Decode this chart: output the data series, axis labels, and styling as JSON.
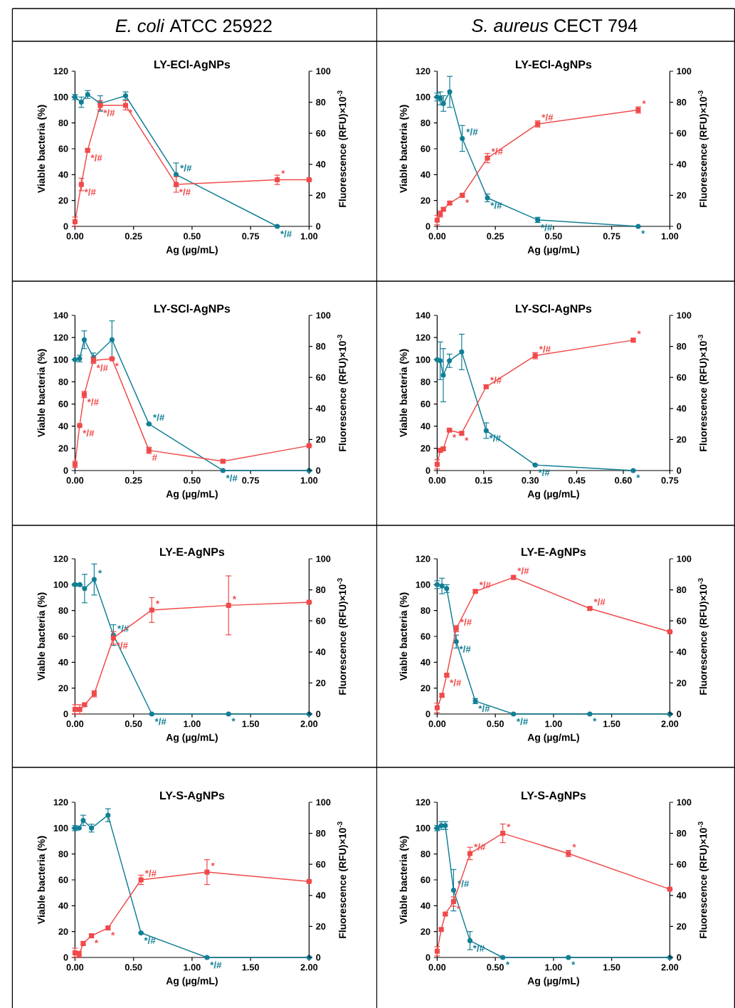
{
  "chart_data": [
    {
      "type": "other",
      "title": "*E. coli* ATCC 25922"
    },
    {
      "type": "other",
      "title": "*S. aureus* CECT 794"
    },
    {
      "type": "line",
      "title": "LY-ECl-AgNPs",
      "xlabel": "Ag (µg/mL)",
      "ylabel": "Viable bacteria (%)",
      "y2label": "Fluorescence (RFU)×10$^{-3}$",
      "xlim": [
        0,
        1
      ],
      "xticks": [
        {
          "value": 0,
          "label": "0.00"
        },
        {
          "value": 0.25,
          "label": "0.25"
        },
        {
          "value": 0.5,
          "label": "0.50"
        },
        {
          "value": 0.75,
          "label": "0.75"
        },
        {
          "value": 1,
          "label": "1.00"
        }
      ],
      "ylim": [
        0,
        120
      ],
      "yticks": [
        0,
        20,
        40,
        60,
        80,
        100,
        120
      ],
      "y2lim": [
        0,
        100
      ],
      "y2ticks": [
        0,
        20,
        40,
        60,
        80,
        100
      ],
      "series": [
        {
          "type": "line",
          "marker": "circle",
          "color": "#117f96",
          "x": [
            0,
            0.027,
            0.054,
            0.108,
            0.216,
            0.432,
            0.864
          ],
          "values": [
            100,
            96,
            102,
            95,
            101,
            40,
            0
          ],
          "errors": [
            2,
            4,
            3,
            6,
            3,
            9,
            null
          ]
        },
        {
          "type": "line",
          "marker": "square",
          "color": "#f04a4a",
          "axis": "y2",
          "x": [
            0,
            0.027,
            0.054,
            0.108,
            0.216,
            0.432,
            0.864,
            1.0
          ],
          "values": [
            3,
            27,
            49,
            78,
            78,
            27,
            30,
            30
          ],
          "errors": [
            3,
            4,
            1,
            3,
            3,
            5,
            3,
            null
          ]
        }
      ],
      "annotations": [
        {
          "text": "*/#",
          "x": 0.108,
          "y": 93.6
        },
        {
          "text": "*",
          "x": 0.216,
          "y": 93.6
        },
        {
          "text": "*/#",
          "x": 0.054,
          "y": 58.8
        },
        {
          "text": "*/#",
          "x": 0.027,
          "y": 32.4
        },
        {
          "text": "*/#",
          "x": 0.432,
          "y": 32.4
        },
        {
          "text": "*",
          "x": 0.864,
          "y": 36
        },
        {
          "text": "*/#",
          "x": 0.432,
          "y": 40
        },
        {
          "text": "*/#",
          "x": 0.864,
          "y": 0
        }
      ]
    },
    {
      "type": "line",
      "title": "LY-ECl-AgNPs",
      "xlabel": "Ag (µg/mL)",
      "ylabel": "Viable bacteria (%)",
      "y2label": "Fluorescence (RFU)×10$^{-3}$",
      "xlim": [
        0,
        1
      ],
      "xticks": [
        {
          "value": 0,
          "label": "0.00"
        },
        {
          "value": 0.25,
          "label": "0.25"
        },
        {
          "value": 0.5,
          "label": "0.50"
        },
        {
          "value": 0.75,
          "label": "0.75"
        },
        {
          "value": 1,
          "label": "1.00"
        }
      ],
      "ylim": [
        0,
        120
      ],
      "yticks": [
        0,
        20,
        40,
        60,
        80,
        100,
        120
      ],
      "y2lim": [
        0,
        100
      ],
      "y2ticks": [
        0,
        20,
        40,
        60,
        80,
        100
      ],
      "series": [
        {
          "type": "line",
          "marker": "circle",
          "color": "#117f96",
          "x": [
            0,
            0.0135,
            0.027,
            0.054,
            0.108,
            0.216,
            0.432,
            0.864
          ],
          "values": [
            100,
            99,
            95,
            104,
            68,
            22,
            5,
            0
          ],
          "errors": [
            3,
            5,
            6,
            12,
            10,
            3,
            2,
            null
          ]
        },
        {
          "type": "line",
          "marker": "square",
          "color": "#f04a4a",
          "axis": "y2",
          "x": [
            0,
            0.0135,
            0.027,
            0.054,
            0.108,
            0.216,
            0.432,
            0.864
          ],
          "values": [
            4,
            8,
            11,
            15,
            20,
            44,
            66,
            75
          ],
          "errors": [
            3,
            2,
            1,
            1,
            1,
            3,
            2,
            2
          ]
        }
      ],
      "annotations": [
        {
          "text": "*/#",
          "x": 0.108,
          "y": 68
        },
        {
          "text": "*/#",
          "x": 0.432,
          "y": 79.2
        },
        {
          "text": "*",
          "x": 0.864,
          "y": 90
        },
        {
          "text": "*/#",
          "x": 0.216,
          "y": 52.8
        },
        {
          "text": "*",
          "x": 0.108,
          "y": 24
        },
        {
          "text": "*/#",
          "x": 0.216,
          "y": 22
        },
        {
          "text": "*/#",
          "x": 0.432,
          "y": 5
        },
        {
          "text": "*",
          "x": 0.864,
          "y": 0
        }
      ]
    },
    {
      "type": "line",
      "title": "LY-SCl-AgNPs",
      "xlabel": "Ag (µg/mL)",
      "ylabel": "Viable bacteria (%)",
      "y2label": "Fluorescence (RFU)×10$^{-3}$",
      "xlim": [
        0,
        1
      ],
      "xticks": [
        {
          "value": 0,
          "label": "0.00"
        },
        {
          "value": 0.25,
          "label": "0.25"
        },
        {
          "value": 0.5,
          "label": "0.50"
        },
        {
          "value": 0.75,
          "label": "0.75"
        },
        {
          "value": 1,
          "label": "1.00"
        }
      ],
      "ylim": [
        0,
        140
      ],
      "yticks": [
        0,
        20,
        40,
        60,
        80,
        100,
        120,
        140
      ],
      "y2lim": [
        0,
        100
      ],
      "y2ticks": [
        0,
        20,
        40,
        60,
        80,
        100
      ],
      "series": [
        {
          "type": "line",
          "marker": "circle",
          "color": "#117f96",
          "x": [
            0,
            0.0198,
            0.0395,
            0.079,
            0.158,
            0.316,
            0.632,
            1.0
          ],
          "values": [
            100,
            101,
            118,
            102,
            118,
            42,
            0,
            0
          ],
          "errors": [
            null,
            3,
            8,
            4,
            17,
            null,
            null,
            null
          ]
        },
        {
          "type": "line",
          "marker": "square",
          "color": "#f04a4a",
          "axis": "y2",
          "x": [
            0,
            0.0198,
            0.0395,
            0.079,
            0.158,
            0.316,
            0.632,
            1.0
          ],
          "values": [
            4,
            29,
            49,
            71,
            72,
            13,
            6,
            16
          ],
          "errors": [
            2,
            null,
            2,
            2,
            null,
            2,
            1,
            null
          ]
        }
      ],
      "annotations": [
        {
          "text": "*",
          "x": 0.158,
          "y": 100.8
        },
        {
          "text": "*/#",
          "x": 0.079,
          "y": 99.4
        },
        {
          "text": "*/#",
          "x": 0.0395,
          "y": 68.6
        },
        {
          "text": "*/#",
          "x": 0.0198,
          "y": 40.6
        },
        {
          "text": "#",
          "x": 0.316,
          "y": 18.2
        },
        {
          "text": "*/#",
          "x": 0.316,
          "y": 42
        },
        {
          "text": "*/#",
          "x": 0.632,
          "y": 0
        }
      ]
    },
    {
      "type": "line",
      "title": "LY-SCl-AgNPs",
      "xlabel": "Ag (µg/mL)",
      "ylabel": "Viable bacteria (%)",
      "y2label": "Fluorescence (RFU)×10$^{-3}$",
      "xlim": [
        0,
        0.75
      ],
      "xticks": [
        {
          "value": 0,
          "label": "0.00"
        },
        {
          "value": 0.15,
          "label": "0.15"
        },
        {
          "value": 0.3,
          "label": "0.30"
        },
        {
          "value": 0.45,
          "label": "0.45"
        },
        {
          "value": 0.6,
          "label": "0.60"
        },
        {
          "value": 0.75,
          "label": "0.75"
        }
      ],
      "ylim": [
        0,
        140
      ],
      "yticks": [
        0,
        20,
        40,
        60,
        80,
        100,
        120,
        140
      ],
      "y2lim": [
        0,
        100
      ],
      "y2ticks": [
        0,
        20,
        40,
        60,
        80,
        100
      ],
      "series": [
        {
          "type": "line",
          "marker": "circle",
          "color": "#117f96",
          "x": [
            0,
            0.0099,
            0.0198,
            0.0395,
            0.079,
            0.158,
            0.316,
            0.632
          ],
          "values": [
            100,
            99,
            86,
            99,
            107,
            36,
            5,
            0
          ],
          "errors": [
            null,
            17,
            24,
            6,
            16,
            7,
            null,
            null
          ]
        },
        {
          "type": "line",
          "marker": "square",
          "color": "#f04a4a",
          "axis": "y2",
          "x": [
            0,
            0.0099,
            0.0198,
            0.0395,
            0.079,
            0.158,
            0.316,
            0.632
          ],
          "values": [
            4,
            13,
            14,
            26,
            24,
            54,
            74,
            84
          ],
          "errors": [
            3,
            1,
            1,
            1,
            1,
            1,
            2,
            1
          ]
        }
      ],
      "annotations": [
        {
          "text": "*/#",
          "x": 0.316,
          "y": 103.6
        },
        {
          "text": "*",
          "x": 0.632,
          "y": 117.6
        },
        {
          "text": "*/#",
          "x": 0.158,
          "y": 75.6
        },
        {
          "text": "*",
          "x": 0.0395,
          "y": 36.4
        },
        {
          "text": "*",
          "x": 0.079,
          "y": 33.6
        },
        {
          "text": "*/#",
          "x": 0.158,
          "y": 36
        },
        {
          "text": "*/#",
          "x": 0.316,
          "y": 5
        },
        {
          "text": "*",
          "x": 0.632,
          "y": 0
        }
      ]
    },
    {
      "type": "line",
      "title": "LY-E-AgNPs",
      "xlabel": "Ag (µg/mL)",
      "ylabel": "Viable bacteria (%)",
      "y2label": "Fluorescence (RFU)×10$^{-3}$",
      "xlim": [
        0,
        2
      ],
      "xticks": [
        {
          "value": 0,
          "label": "0.00"
        },
        {
          "value": 0.5,
          "label": "0.50"
        },
        {
          "value": 1,
          "label": "1.00"
        },
        {
          "value": 1.5,
          "label": "1.50"
        },
        {
          "value": 2,
          "label": "2.00"
        }
      ],
      "ylim": [
        0,
        120
      ],
      "yticks": [
        0,
        20,
        40,
        60,
        80,
        100,
        120
      ],
      "y2lim": [
        0,
        100
      ],
      "y2ticks": [
        0,
        20,
        40,
        60,
        80,
        100
      ],
      "series": [
        {
          "type": "line",
          "marker": "circle",
          "color": "#117f96",
          "x": [
            0,
            0.041,
            0.082,
            0.164,
            0.328,
            0.656,
            1.312,
            2.0
          ],
          "values": [
            100,
            100,
            97,
            104,
            61,
            0,
            0,
            0
          ],
          "errors": [
            1,
            null,
            11,
            12,
            8,
            null,
            null,
            null
          ]
        },
        {
          "type": "line",
          "marker": "square",
          "color": "#f04a4a",
          "axis": "y2",
          "x": [
            0,
            0.041,
            0.082,
            0.164,
            0.328,
            0.656,
            1.312,
            2.0
          ],
          "values": [
            3,
            3,
            6,
            13,
            49,
            67,
            70,
            72
          ],
          "errors": [
            3,
            3,
            1,
            2,
            4,
            8,
            19,
            null
          ]
        }
      ],
      "annotations": [
        {
          "text": "*",
          "x": 0.164,
          "y": 104
        },
        {
          "text": "*/#",
          "x": 0.328,
          "y": 58.8
        },
        {
          "text": "*",
          "x": 0.656,
          "y": 80.4
        },
        {
          "text": "*",
          "x": 1.312,
          "y": 84
        },
        {
          "text": "*/#",
          "x": 0.328,
          "y": 61
        },
        {
          "text": "*/#",
          "x": 0.656,
          "y": 0
        },
        {
          "text": "*",
          "x": 1.312,
          "y": 0
        }
      ]
    },
    {
      "type": "line",
      "title": "LY-E-AgNPs",
      "xlabel": "Ag (µg/mL)",
      "ylabel": "Viable bacteria (%)",
      "y2label": "Fluorescence (RFU)×10$^{-3}$",
      "xlim": [
        0,
        2
      ],
      "xticks": [
        {
          "value": 0,
          "label": "0.00"
        },
        {
          "value": 0.5,
          "label": "0.50"
        },
        {
          "value": 1,
          "label": "1.00"
        },
        {
          "value": 1.5,
          "label": "1.50"
        },
        {
          "value": 2,
          "label": "2.00"
        }
      ],
      "ylim": [
        0,
        120
      ],
      "yticks": [
        0,
        20,
        40,
        60,
        80,
        100,
        120
      ],
      "y2lim": [
        0,
        100
      ],
      "y2ticks": [
        0,
        20,
        40,
        60,
        80,
        100
      ],
      "series": [
        {
          "type": "line",
          "marker": "circle",
          "color": "#117f96",
          "x": [
            0,
            0.041,
            0.082,
            0.164,
            0.328,
            0.656,
            1.312,
            2.0
          ],
          "values": [
            100,
            99,
            97,
            56,
            10,
            0,
            0,
            0
          ],
          "errors": [
            3,
            6,
            3,
            5,
            2,
            null,
            null,
            null
          ]
        },
        {
          "type": "line",
          "marker": "square",
          "color": "#f04a4a",
          "axis": "y2",
          "x": [
            0,
            0.041,
            0.082,
            0.164,
            0.328,
            0.656,
            1.312,
            2.0
          ],
          "values": [
            4,
            12,
            25,
            55,
            79,
            88,
            68,
            53
          ],
          "errors": [
            3,
            1,
            1,
            2,
            1,
            1,
            1,
            null
          ]
        }
      ],
      "annotations": [
        {
          "text": "*/#",
          "x": 0.328,
          "y": 94.8
        },
        {
          "text": "*/#",
          "x": 0.656,
          "y": 105.6
        },
        {
          "text": "*/#",
          "x": 0.164,
          "y": 66
        },
        {
          "text": "*/#",
          "x": 1.312,
          "y": 81.6
        },
        {
          "text": "*/#",
          "x": 0.082,
          "y": 30
        },
        {
          "text": "*/#",
          "x": 0.164,
          "y": 56
        },
        {
          "text": "*/#",
          "x": 0.328,
          "y": 10
        },
        {
          "text": "*/#",
          "x": 0.656,
          "y": 0
        },
        {
          "text": "*",
          "x": 1.312,
          "y": 0
        }
      ]
    },
    {
      "type": "line",
      "title": "LY-S-AgNPs",
      "xlabel": "Ag (µg/mL)",
      "ylabel": "Viable bacteria (%)",
      "y2label": "Fluorescence (RFU)×10$^{-3}$",
      "xlim": [
        0,
        2
      ],
      "xticks": [
        {
          "value": 0,
          "label": "0.00"
        },
        {
          "value": 0.5,
          "label": "0.50"
        },
        {
          "value": 1,
          "label": "1.00"
        },
        {
          "value": 1.5,
          "label": "1.50"
        },
        {
          "value": 2,
          "label": "2.00"
        }
      ],
      "ylim": [
        0,
        120
      ],
      "yticks": [
        0,
        20,
        40,
        60,
        80,
        100,
        120
      ],
      "y2lim": [
        0,
        100
      ],
      "y2ticks": [
        0,
        20,
        40,
        60,
        80,
        100
      ],
      "series": [
        {
          "type": "line",
          "marker": "circle",
          "color": "#117f96",
          "x": [
            0,
            0.035,
            0.07,
            0.141,
            0.282,
            0.564,
            1.128,
            2.0
          ],
          "values": [
            100,
            100,
            106,
            100,
            110,
            19,
            0,
            0
          ],
          "errors": [
            2,
            null,
            4,
            3,
            5,
            null,
            null,
            null
          ]
        },
        {
          "type": "line",
          "marker": "square",
          "color": "#f04a4a",
          "axis": "y2",
          "x": [
            0,
            0.035,
            0.07,
            0.141,
            0.282,
            0.564,
            1.128,
            2.0
          ],
          "values": [
            3,
            2,
            9,
            14,
            19,
            50,
            55,
            49
          ],
          "errors": [
            3,
            2,
            1,
            1,
            1,
            3,
            8,
            null
          ]
        }
      ],
      "annotations": [
        {
          "text": "*/#",
          "x": 0.564,
          "y": 60
        },
        {
          "text": "*",
          "x": 1.128,
          "y": 66
        },
        {
          "text": "*",
          "x": 0.141,
          "y": 16.8
        },
        {
          "text": "*",
          "x": 0.282,
          "y": 22.8
        },
        {
          "text": "*/#",
          "x": 0.564,
          "y": 19
        },
        {
          "text": "*/#",
          "x": 1.128,
          "y": 0
        }
      ]
    },
    {
      "type": "line",
      "title": "LY-S-AgNPs",
      "xlabel": "Ag (µg/mL)",
      "ylabel": "Viable bacteria (%)",
      "y2label": "Fluorescence (RFU)×10$^{-3}$",
      "xlim": [
        0,
        2
      ],
      "xticks": [
        {
          "value": 0,
          "label": "0.00"
        },
        {
          "value": 0.5,
          "label": "0.50"
        },
        {
          "value": 1,
          "label": "1.00"
        },
        {
          "value": 1.5,
          "label": "1.50"
        },
        {
          "value": 2,
          "label": "2.00"
        }
      ],
      "ylim": [
        0,
        120
      ],
      "yticks": [
        0,
        20,
        40,
        60,
        80,
        100,
        120
      ],
      "y2lim": [
        0,
        100
      ],
      "y2ticks": [
        0,
        20,
        40,
        60,
        80,
        100
      ],
      "series": [
        {
          "type": "line",
          "marker": "circle",
          "color": "#117f96",
          "x": [
            0,
            0.035,
            0.07,
            0.141,
            0.282,
            0.564,
            1.128,
            2.0
          ],
          "values": [
            100,
            102,
            102,
            52,
            13,
            0,
            0,
            0
          ],
          "errors": [
            2,
            3,
            3,
            16,
            7,
            null,
            null,
            null
          ]
        },
        {
          "type": "line",
          "marker": "square",
          "color": "#f04a4a",
          "axis": "y2",
          "x": [
            0,
            0.035,
            0.07,
            0.141,
            0.282,
            0.564,
            1.128,
            2.0
          ],
          "values": [
            4,
            18,
            28,
            36,
            67,
            80,
            67,
            44
          ],
          "errors": [
            3,
            1,
            1,
            3,
            4,
            6,
            2,
            null
          ]
        }
      ],
      "annotations": [
        {
          "text": "*",
          "x": 0.564,
          "y": 96
        },
        {
          "text": "*",
          "x": 1.128,
          "y": 80.4
        },
        {
          "text": "*/#",
          "x": 0.282,
          "y": 80.4
        },
        {
          "text": "*",
          "x": 0.141,
          "y": 43.2
        },
        {
          "text": "*/#",
          "x": 0.141,
          "y": 52
        },
        {
          "text": "*/#",
          "x": 0.282,
          "y": 13
        },
        {
          "text": "*",
          "x": 0.564,
          "y": 0
        },
        {
          "text": "*",
          "x": 1.128,
          "y": 0
        }
      ]
    }
  ]
}
